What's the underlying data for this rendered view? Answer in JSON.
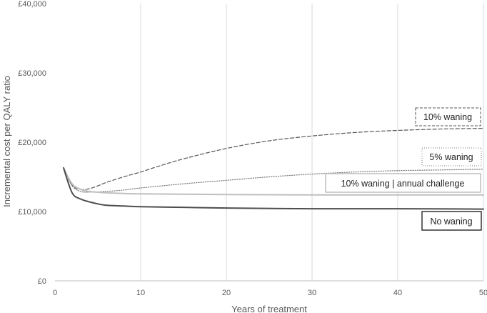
{
  "chart_data": {
    "type": "line",
    "title": "",
    "xlabel": "Years of treatment",
    "ylabel": "Incremental cost per QALY ratio",
    "xlim": [
      0,
      50
    ],
    "ylim": [
      0,
      40000
    ],
    "xticks": [
      0,
      10,
      20,
      30,
      40,
      50
    ],
    "yticks": [
      0,
      10000,
      20000,
      30000,
      40000
    ],
    "x_tick_labels": [
      "0",
      "10",
      "20",
      "30",
      "40",
      "50"
    ],
    "y_tick_labels": [
      "£0",
      "£10,000",
      "£20,000",
      "£30,000",
      "£40,000"
    ],
    "grid": "vertical",
    "series": [
      {
        "name": "10% waning",
        "style": "dashed",
        "color": "#555555",
        "x": [
          1,
          2,
          3,
          4,
          5,
          6,
          8,
          10,
          12,
          15,
          20,
          25,
          30,
          35,
          40,
          45,
          50
        ],
        "y": [
          16300,
          13800,
          13200,
          13300,
          13700,
          14200,
          15000,
          15700,
          16500,
          17600,
          19100,
          20200,
          20900,
          21400,
          21700,
          21900,
          22000
        ]
      },
      {
        "name": "5% waning",
        "style": "dotted",
        "color": "#7a7a7a",
        "x": [
          1,
          2,
          3,
          4,
          6,
          8,
          10,
          15,
          20,
          25,
          30,
          35,
          40,
          45,
          50
        ],
        "y": [
          16300,
          13700,
          12900,
          12800,
          12900,
          13100,
          13400,
          14000,
          14500,
          15000,
          15400,
          15700,
          15900,
          16000,
          16100
        ]
      },
      {
        "name": "10% waning | annual challenge",
        "style": "solid",
        "color": "#bfbfbf",
        "x": [
          1,
          2,
          3,
          4,
          6,
          8,
          10,
          15,
          20,
          30,
          40,
          50
        ],
        "y": [
          16300,
          14000,
          13200,
          12900,
          12700,
          12600,
          12550,
          12500,
          12450,
          12400,
          12400,
          12400
        ]
      },
      {
        "name": "No waning",
        "style": "solid",
        "color": "#4d4d4d",
        "x": [
          1,
          2,
          3,
          4,
          5,
          6,
          8,
          10,
          15,
          20,
          30,
          40,
          50
        ],
        "y": [
          16300,
          12700,
          11800,
          11400,
          11100,
          10900,
          10800,
          10700,
          10600,
          10500,
          10400,
          10400,
          10350
        ]
      }
    ],
    "annotations": [
      "10% waning",
      "5% waning",
      "10% waning | annual challenge",
      "No waning"
    ]
  }
}
